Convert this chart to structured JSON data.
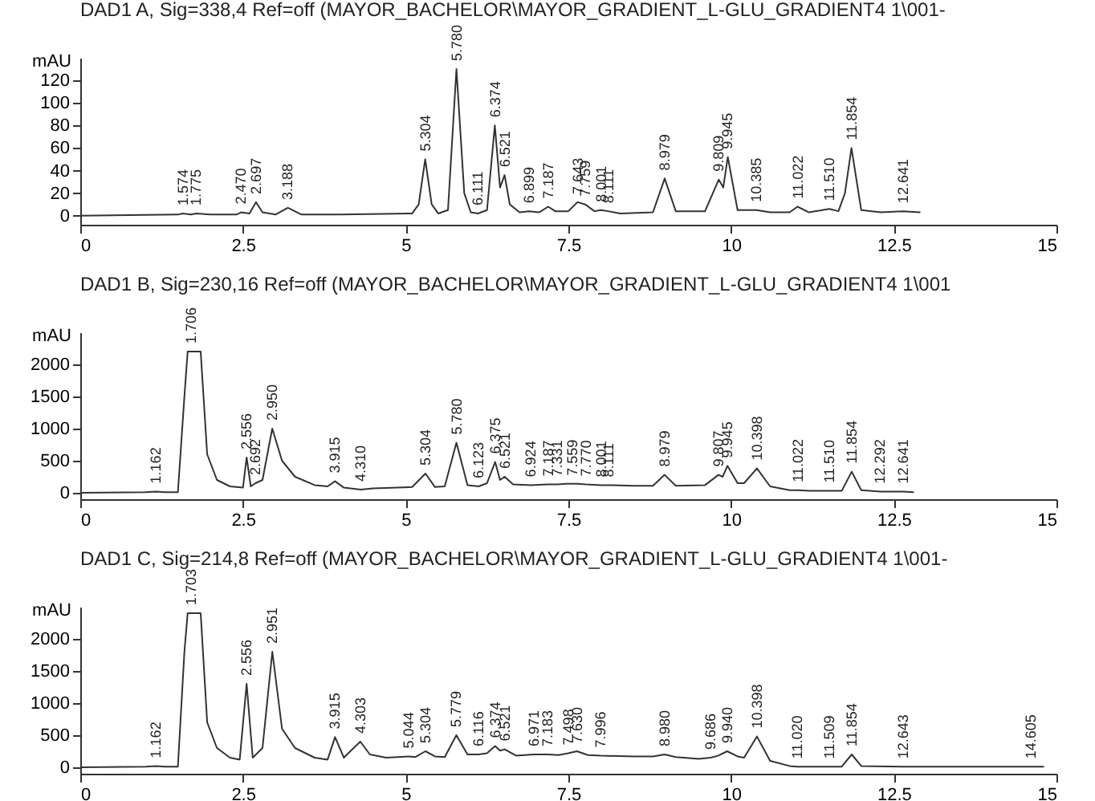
{
  "chart_data": [
    {
      "type": "line",
      "title": "DAD1 A, Sig=338,4 Ref=off (MAYOR_BACHELOR\\MAYOR_GRADIENT_L-GLU_GRADIENT4 1\\001-",
      "ylabel": "mAU",
      "xlim": [
        0,
        15
      ],
      "xticks": [
        0,
        2.5,
        5,
        7.5,
        10,
        12.5,
        15
      ],
      "ylim": [
        -8,
        140
      ],
      "yticks": [
        0,
        20,
        40,
        60,
        80,
        100,
        120
      ],
      "x": [
        0,
        1.5,
        1.57,
        1.7,
        1.78,
        2.0,
        2.4,
        2.47,
        2.6,
        2.7,
        2.8,
        3.0,
        3.19,
        3.4,
        4.0,
        5.1,
        5.2,
        5.3,
        5.4,
        5.5,
        5.65,
        5.78,
        5.9,
        6.0,
        6.11,
        6.25,
        6.37,
        6.45,
        6.52,
        6.6,
        6.75,
        6.9,
        7.05,
        7.19,
        7.3,
        7.5,
        7.64,
        7.76,
        7.9,
        8.0,
        8.11,
        8.3,
        8.8,
        8.98,
        9.15,
        9.6,
        9.81,
        9.88,
        9.95,
        10.1,
        10.39,
        10.6,
        10.9,
        11.02,
        11.2,
        11.51,
        11.65,
        11.75,
        11.85,
        12.0,
        12.3,
        12.64,
        12.9
      ],
      "series": [
        {
          "color": "#333333",
          "values": [
            0,
            1,
            2,
            1,
            2,
            1,
            1,
            3,
            2,
            12,
            3,
            1,
            7,
            1,
            1,
            2,
            10,
            50,
            10,
            2,
            5,
            130,
            20,
            3,
            2,
            5,
            80,
            25,
            36,
            10,
            3,
            4,
            3,
            8,
            4,
            4,
            12,
            10,
            4,
            5,
            4,
            2,
            3,
            33,
            4,
            4,
            32,
            25,
            52,
            5,
            5,
            3,
            3,
            8,
            3,
            6,
            4,
            20,
            60,
            5,
            3,
            4,
            3
          ]
        }
      ],
      "annotations": [
        {
          "text": "1.574",
          "x": 1.574,
          "y": 2
        },
        {
          "text": "1.775",
          "x": 1.775,
          "y": 2
        },
        {
          "text": "2.470",
          "x": 2.47,
          "y": 3
        },
        {
          "text": "2.697",
          "x": 2.697,
          "y": 12
        },
        {
          "text": "3.188",
          "x": 3.188,
          "y": 7
        },
        {
          "text": "5.304",
          "x": 5.304,
          "y": 50
        },
        {
          "text": "5.780",
          "x": 5.78,
          "y": 130
        },
        {
          "text": "6.111",
          "x": 6.111,
          "y": 2
        },
        {
          "text": "6.374",
          "x": 6.374,
          "y": 80
        },
        {
          "text": "6.521",
          "x": 6.521,
          "y": 36
        },
        {
          "text": "6.899",
          "x": 6.899,
          "y": 4
        },
        {
          "text": "7.187",
          "x": 7.187,
          "y": 8
        },
        {
          "text": "7.643",
          "x": 7.643,
          "y": 12
        },
        {
          "text": "7.759",
          "x": 7.759,
          "y": 10
        },
        {
          "text": "8.001",
          "x": 8.001,
          "y": 5
        },
        {
          "text": "8.111",
          "x": 8.111,
          "y": 4
        },
        {
          "text": "8.979",
          "x": 8.979,
          "y": 33
        },
        {
          "text": "9.809",
          "x": 9.809,
          "y": 32
        },
        {
          "text": "9.945",
          "x": 9.945,
          "y": 52
        },
        {
          "text": "10.385",
          "x": 10.385,
          "y": 5
        },
        {
          "text": "11.022",
          "x": 11.022,
          "y": 8
        },
        {
          "text": "11.510",
          "x": 11.51,
          "y": 6
        },
        {
          "text": "11.854",
          "x": 11.854,
          "y": 60
        },
        {
          "text": "12.641",
          "x": 12.641,
          "y": 4
        }
      ]
    },
    {
      "type": "line",
      "title": "DAD1 B, Sig=230,16 Ref=off (MAYOR_BACHELOR\\MAYOR_GRADIENT_L-GLU_GRADIENT4 1\\001",
      "ylabel": "mAU",
      "xlim": [
        0,
        15
      ],
      "xticks": [
        0,
        2.5,
        5,
        7.5,
        10,
        12.5,
        15
      ],
      "ylim": [
        -100,
        2500
      ],
      "yticks": [
        0,
        500,
        1000,
        1500,
        2000
      ],
      "x": [
        0,
        1.0,
        1.162,
        1.3,
        1.5,
        1.6,
        1.65,
        1.706,
        1.85,
        1.95,
        2.1,
        2.3,
        2.5,
        2.556,
        2.62,
        2.692,
        2.8,
        2.95,
        3.1,
        3.3,
        3.6,
        3.8,
        3.915,
        4.05,
        4.31,
        4.5,
        5.1,
        5.304,
        5.45,
        5.6,
        5.78,
        5.95,
        6.123,
        6.25,
        6.375,
        6.45,
        6.521,
        6.65,
        6.924,
        7.187,
        7.331,
        7.463,
        7.559,
        7.643,
        7.77,
        8.001,
        8.111,
        8.5,
        8.8,
        8.979,
        9.15,
        9.6,
        9.807,
        9.87,
        9.945,
        10.1,
        10.2,
        10.398,
        10.6,
        10.9,
        11.022,
        11.2,
        11.51,
        11.7,
        11.854,
        12.0,
        12.292,
        12.641,
        12.8
      ],
      "series": [
        {
          "color": "#333333",
          "values": [
            0,
            10,
            20,
            10,
            10,
            1500,
            2200,
            2200,
            2200,
            600,
            200,
            100,
            80,
            550,
            100,
            150,
            200,
            1000,
            500,
            250,
            120,
            100,
            180,
            80,
            50,
            70,
            90,
            300,
            90,
            100,
            780,
            120,
            100,
            150,
            480,
            200,
            250,
            130,
            120,
            130,
            130,
            140,
            140,
            140,
            130,
            120,
            120,
            110,
            110,
            280,
            110,
            120,
            280,
            250,
            420,
            150,
            150,
            380,
            100,
            40,
            40,
            30,
            30,
            30,
            330,
            40,
            20,
            20,
            10
          ]
        }
      ],
      "annotations": [
        {
          "text": "1.162",
          "x": 1.162,
          "y": 20
        },
        {
          "text": "1.706",
          "x": 1.706,
          "y": 2200
        },
        {
          "text": "2.556",
          "x": 2.556,
          "y": 550
        },
        {
          "text": "2.692",
          "x": 2.692,
          "y": 150
        },
        {
          "text": "2.950",
          "x": 2.95,
          "y": 1000
        },
        {
          "text": "3.915",
          "x": 3.915,
          "y": 180
        },
        {
          "text": "4.310",
          "x": 4.31,
          "y": 50
        },
        {
          "text": "5.304",
          "x": 5.304,
          "y": 300
        },
        {
          "text": "5.780",
          "x": 5.78,
          "y": 780
        },
        {
          "text": "6.123",
          "x": 6.123,
          "y": 100
        },
        {
          "text": "6.375",
          "x": 6.375,
          "y": 480
        },
        {
          "text": "6.521",
          "x": 6.521,
          "y": 250
        },
        {
          "text": "6.924",
          "x": 6.924,
          "y": 120
        },
        {
          "text": "7.187",
          "x": 7.187,
          "y": 130
        },
        {
          "text": "7.331",
          "x": 7.331,
          "y": 130
        },
        {
          "text": "7.559",
          "x": 7.559,
          "y": 140
        },
        {
          "text": "7.770",
          "x": 7.77,
          "y": 130
        },
        {
          "text": "8.001",
          "x": 8.001,
          "y": 120
        },
        {
          "text": "8.111",
          "x": 8.111,
          "y": 120
        },
        {
          "text": "8.979",
          "x": 8.979,
          "y": 280
        },
        {
          "text": "9.807",
          "x": 9.807,
          "y": 280
        },
        {
          "text": "9.945",
          "x": 9.945,
          "y": 420
        },
        {
          "text": "10.398",
          "x": 10.398,
          "y": 380
        },
        {
          "text": "11.022",
          "x": 11.022,
          "y": 40
        },
        {
          "text": "11.510",
          "x": 11.51,
          "y": 30
        },
        {
          "text": "11.854",
          "x": 11.854,
          "y": 330
        },
        {
          "text": "12.292",
          "x": 12.292,
          "y": 20
        },
        {
          "text": "12.641",
          "x": 12.641,
          "y": 20
        }
      ]
    },
    {
      "type": "line",
      "title": "DAD1 C, Sig=214,8 Ref=off (MAYOR_BACHELOR\\MAYOR_GRADIENT_L-GLU_GRADIENT4 1\\001-",
      "ylabel": "mAU",
      "xlim": [
        0,
        15
      ],
      "xticks": [
        0,
        2.5,
        5,
        7.5,
        10,
        12.5,
        15
      ],
      "ylim": [
        -100,
        2500
      ],
      "yticks": [
        0,
        500,
        1000,
        1500,
        2000
      ],
      "x": [
        0,
        1.0,
        1.162,
        1.3,
        1.5,
        1.6,
        1.65,
        1.703,
        1.85,
        1.95,
        2.1,
        2.3,
        2.45,
        2.556,
        2.65,
        2.8,
        2.951,
        3.1,
        3.3,
        3.6,
        3.8,
        3.915,
        4.05,
        4.2,
        4.303,
        4.45,
        4.7,
        5.044,
        5.15,
        5.304,
        5.45,
        5.6,
        5.779,
        5.95,
        6.116,
        6.25,
        6.374,
        6.45,
        6.521,
        6.7,
        6.971,
        7.183,
        7.35,
        7.498,
        7.63,
        7.8,
        7.996,
        8.5,
        8.8,
        8.98,
        9.15,
        9.5,
        9.686,
        9.8,
        9.94,
        10.1,
        10.2,
        10.398,
        10.6,
        10.9,
        11.02,
        11.2,
        11.509,
        11.7,
        11.854,
        12.0,
        12.643,
        13.5,
        14.605,
        14.8
      ],
      "series": [
        {
          "color": "#333333",
          "values": [
            0,
            10,
            20,
            10,
            10,
            1800,
            2400,
            2400,
            2400,
            700,
            300,
            150,
            120,
            1300,
            150,
            300,
            1800,
            600,
            300,
            150,
            120,
            470,
            150,
            300,
            400,
            200,
            150,
            170,
            160,
            250,
            170,
            160,
            500,
            200,
            200,
            220,
            330,
            260,
            280,
            180,
            200,
            200,
            190,
            220,
            250,
            190,
            180,
            170,
            170,
            200,
            160,
            130,
            150,
            180,
            250,
            170,
            150,
            480,
            100,
            20,
            10,
            10,
            10,
            10,
            200,
            20,
            10,
            10,
            10,
            10
          ]
        }
      ],
      "annotations": [
        {
          "text": "1.162",
          "x": 1.162,
          "y": 20
        },
        {
          "text": "1.703",
          "x": 1.703,
          "y": 2400
        },
        {
          "text": "2.556",
          "x": 2.556,
          "y": 1300
        },
        {
          "text": "2.951",
          "x": 2.951,
          "y": 1800
        },
        {
          "text": "3.915",
          "x": 3.915,
          "y": 470
        },
        {
          "text": "4.303",
          "x": 4.303,
          "y": 400
        },
        {
          "text": "5.044",
          "x": 5.044,
          "y": 170
        },
        {
          "text": "5.304",
          "x": 5.304,
          "y": 250
        },
        {
          "text": "5.779",
          "x": 5.779,
          "y": 500
        },
        {
          "text": "6.116",
          "x": 6.116,
          "y": 200
        },
        {
          "text": "6.374",
          "x": 6.374,
          "y": 330
        },
        {
          "text": "6.521",
          "x": 6.521,
          "y": 280
        },
        {
          "text": "6.971",
          "x": 6.971,
          "y": 200
        },
        {
          "text": "7.183",
          "x": 7.183,
          "y": 200
        },
        {
          "text": "7.498",
          "x": 7.498,
          "y": 220
        },
        {
          "text": "7.630",
          "x": 7.63,
          "y": 250
        },
        {
          "text": "7.996",
          "x": 7.996,
          "y": 180
        },
        {
          "text": "8.980",
          "x": 8.98,
          "y": 200
        },
        {
          "text": "9.686",
          "x": 9.686,
          "y": 150
        },
        {
          "text": "9.940",
          "x": 9.94,
          "y": 250
        },
        {
          "text": "10.398",
          "x": 10.398,
          "y": 480
        },
        {
          "text": "11.020",
          "x": 11.02,
          "y": 10
        },
        {
          "text": "11.509",
          "x": 11.509,
          "y": 10
        },
        {
          "text": "11.854",
          "x": 11.854,
          "y": 200
        },
        {
          "text": "12.643",
          "x": 12.643,
          "y": 10
        },
        {
          "text": "14.605",
          "x": 14.605,
          "y": 10
        }
      ]
    }
  ]
}
